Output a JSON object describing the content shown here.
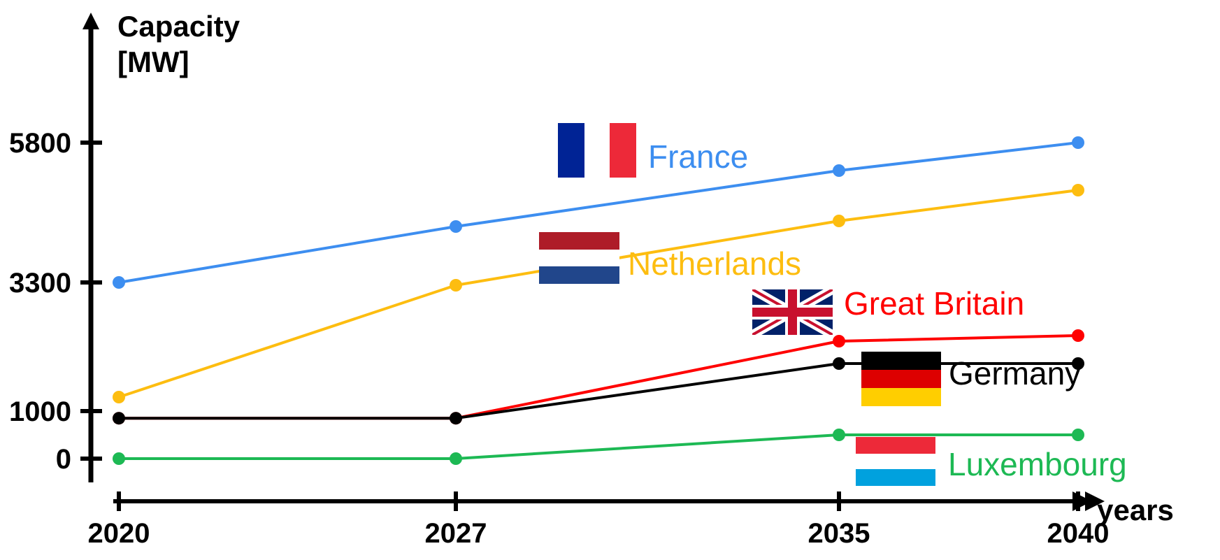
{
  "chart_data": {
    "type": "line",
    "ylabel": [
      "Capacity",
      "[MW]"
    ],
    "xlabel": "years",
    "x": [
      2020,
      2027,
      2035,
      2040
    ],
    "x_ticks": [
      "2020",
      "2027",
      "2035",
      "2040"
    ],
    "y_ticks": [
      0,
      1000,
      3300,
      5800
    ],
    "y_tick_labels": [
      "0",
      "1000",
      "3300",
      "5800"
    ],
    "series": [
      {
        "name": "France",
        "color": "#3d8ef0",
        "flag": "france-flag-icon",
        "values": [
          3300,
          4300,
          5300,
          5800
        ]
      },
      {
        "name": "Netherlands",
        "color": "#fdbd10",
        "flag": "netherlands-flag-icon",
        "values": [
          1250,
          3250,
          4400,
          4950
        ]
      },
      {
        "name": "Great Britain",
        "color": "#ff0000",
        "flag": "great-britain-flag-icon",
        "values": [
          850,
          850,
          2250,
          2350
        ]
      },
      {
        "name": "Germany",
        "color": "#000000",
        "flag": "germany-flag-icon",
        "values": [
          850,
          850,
          1850,
          1850
        ]
      },
      {
        "name": "Luxembourg",
        "color": "#1db954",
        "flag": "luxembourg-flag-icon",
        "values": [
          0,
          0,
          500,
          500
        ]
      }
    ],
    "grid": false,
    "legend": "inline"
  }
}
